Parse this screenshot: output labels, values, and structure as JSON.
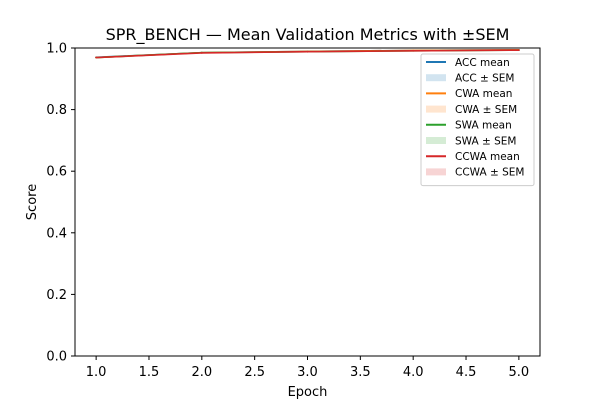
{
  "chart_data": {
    "type": "line",
    "title": "SPR_BENCH — Mean Validation Metrics with ±SEM",
    "xlabel": "Epoch",
    "ylabel": "Score",
    "xlim": [
      0.8,
      5.2
    ],
    "ylim": [
      0.0,
      1.0
    ],
    "x_ticks": [
      "1.0",
      "1.5",
      "2.0",
      "2.5",
      "3.0",
      "3.5",
      "4.0",
      "4.5",
      "5.0"
    ],
    "y_ticks": [
      "0.0",
      "0.2",
      "0.4",
      "0.6",
      "0.8",
      "1.0"
    ],
    "x": [
      1,
      2,
      3,
      4,
      5
    ],
    "legend_position": "top-right",
    "grid": false,
    "series": [
      {
        "name": "ACC mean",
        "band_name": "ACC ± SEM",
        "color": "#1f77b4",
        "values": [
          0.97,
          0.985,
          0.989,
          0.992,
          0.994
        ],
        "sem": [
          0.001,
          0.001,
          0.001,
          0.001,
          0.001
        ]
      },
      {
        "name": "CWA mean",
        "band_name": "CWA ± SEM",
        "color": "#ff7f0e",
        "values": [
          0.969,
          0.985,
          0.989,
          0.992,
          0.994
        ],
        "sem": [
          0.001,
          0.001,
          0.001,
          0.001,
          0.001
        ]
      },
      {
        "name": "SWA mean",
        "band_name": "SWA ± SEM",
        "color": "#2ca02c",
        "values": [
          0.969,
          0.985,
          0.988,
          0.991,
          0.993
        ],
        "sem": [
          0.001,
          0.001,
          0.001,
          0.001,
          0.001
        ]
      },
      {
        "name": "CCWA mean",
        "band_name": "CCWA ± SEM",
        "color": "#d62728",
        "values": [
          0.969,
          0.984,
          0.988,
          0.991,
          0.993
        ],
        "sem": [
          0.001,
          0.001,
          0.001,
          0.001,
          0.001
        ]
      }
    ]
  }
}
